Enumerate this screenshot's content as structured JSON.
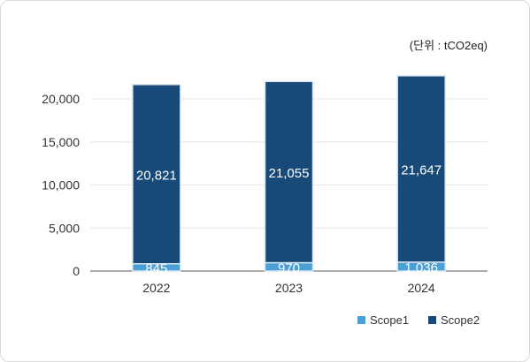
{
  "chart_data": {
    "type": "bar",
    "stacked": true,
    "unit_label": "(단위 : tCO2eq)",
    "categories": [
      "2022",
      "2023",
      "2024"
    ],
    "series": [
      {
        "name": "Scope1",
        "values": [
          845,
          970,
          1036
        ],
        "labels": [
          "845",
          "970",
          "1,036"
        ],
        "color": "#4a9fd4"
      },
      {
        "name": "Scope2",
        "values": [
          20821,
          21055,
          21647
        ],
        "labels": [
          "20,821",
          "21,055",
          "21,647"
        ],
        "color": "#174a78"
      }
    ],
    "yticks": [
      "0",
      "5,000",
      "10,000",
      "15,000",
      "20,000"
    ],
    "ylim": [
      0,
      25000
    ],
    "grid": true,
    "legend_position": "bottom-right"
  }
}
